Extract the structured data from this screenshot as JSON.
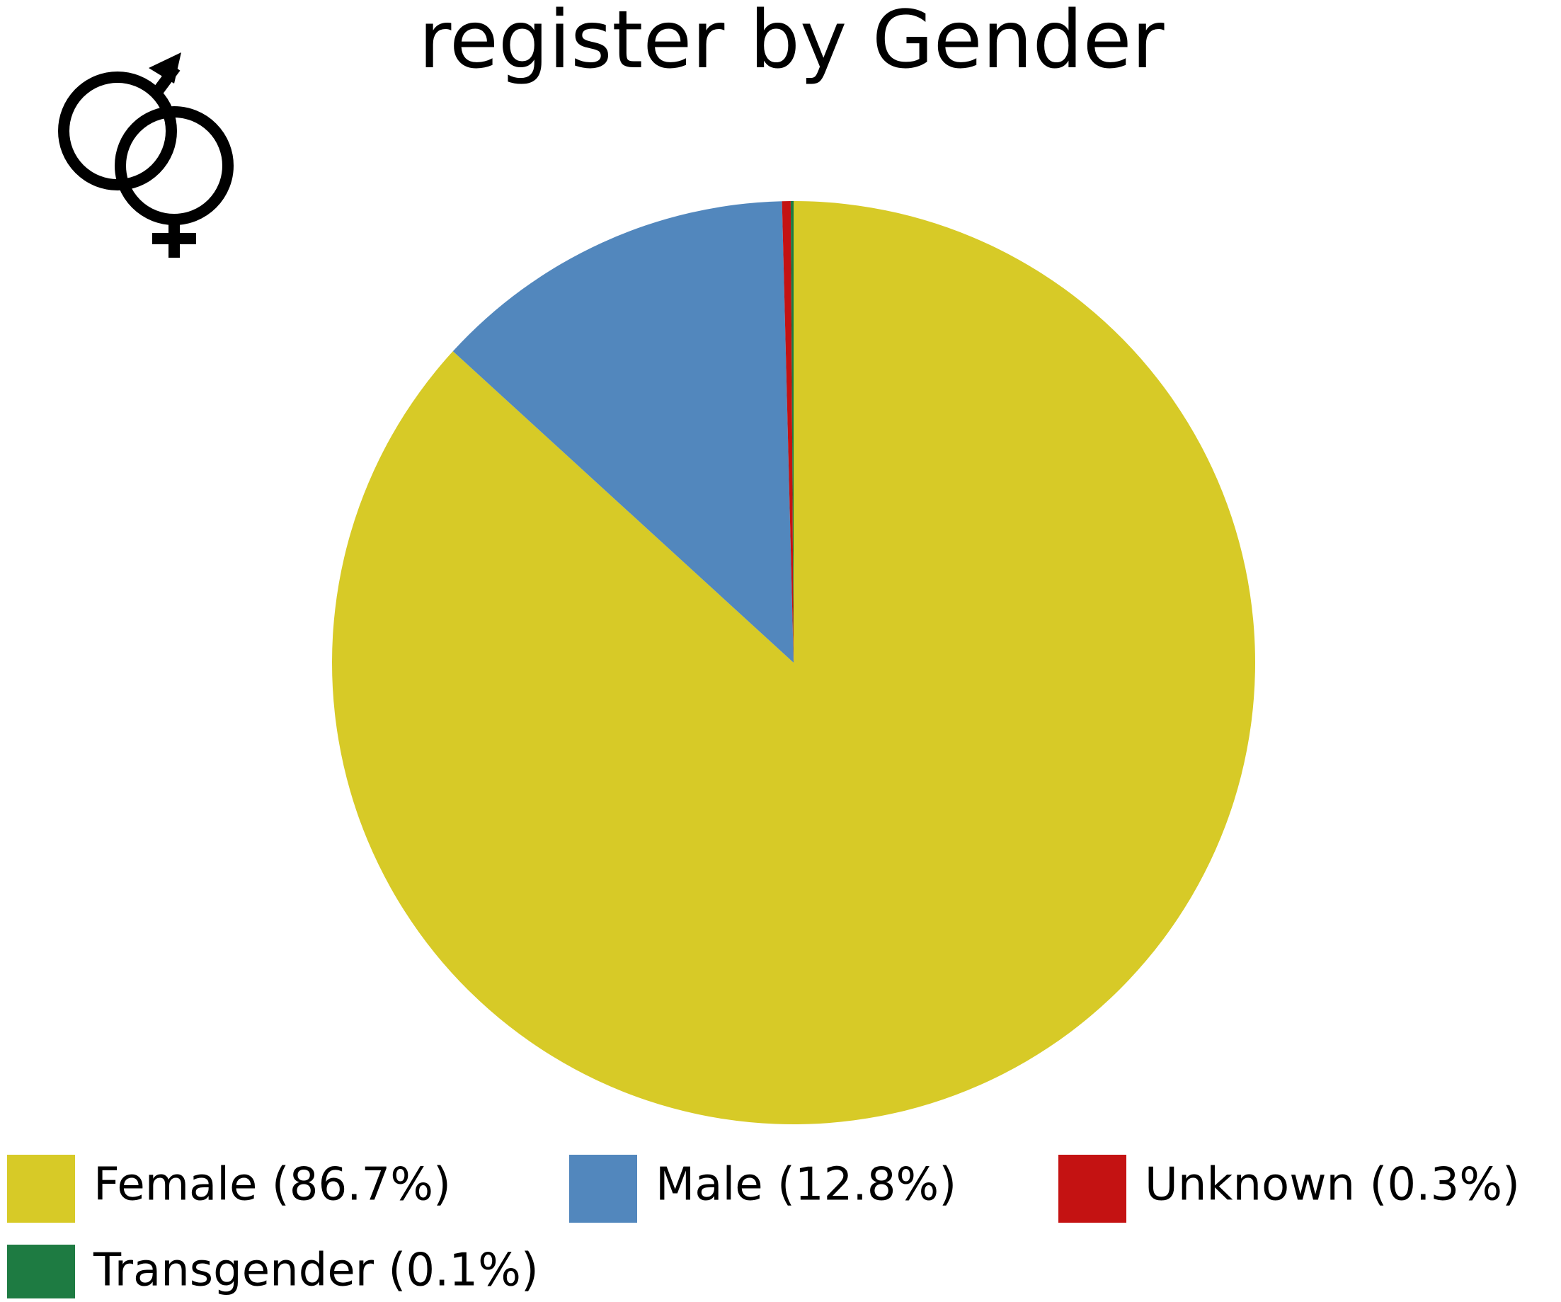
{
  "chart_data": {
    "type": "pie",
    "title": "register by Gender",
    "values": [
      86.7,
      12.8,
      0.3,
      0.1
    ],
    "value_labels": [
      "Female (86.7%)",
      "Male (12.8%)",
      "Unknown (0.3%)",
      "Transgender (0.1%)"
    ],
    "colors": [
      "#d7ca27",
      "#5287bd",
      "#c41212",
      "#1e7b42"
    ]
  }
}
